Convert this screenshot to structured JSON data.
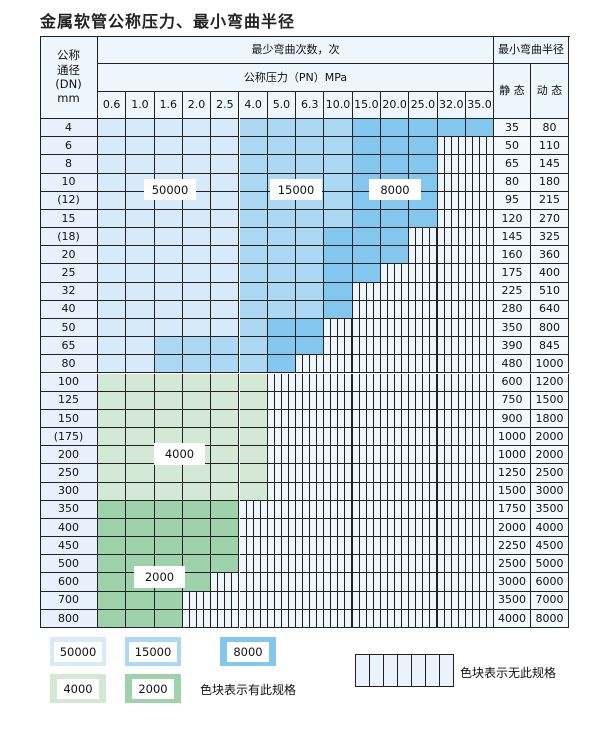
{
  "title": "金属软管公称压力、最小弯曲半径",
  "header": {
    "dn_label": "公称\n通径\n(DN)\nmm",
    "cycles_label": "最少弯曲次数，次",
    "pressure_label": "公称压力（PN）MPa",
    "radius_label": "最小弯曲半径",
    "static_label": "静 态",
    "dynamic_label": "动 态",
    "pressures": [
      "0.6",
      "1.0",
      "1.6",
      "2.0",
      "2.5",
      "4.0",
      "5.0",
      "6.3",
      "10.0",
      "15.0",
      "20.0",
      "25.0",
      "32.0",
      "35.0"
    ]
  },
  "rows": [
    {
      "dn": "4",
      "static": "35",
      "dynamic": "80",
      "cells": "aaaaabbbbccccc"
    },
    {
      "dn": "6",
      "static": "50",
      "dynamic": "110",
      "cells": "aaaaabbbbccchh"
    },
    {
      "dn": "8",
      "static": "65",
      "dynamic": "145",
      "cells": "aaaaabbbbccchh"
    },
    {
      "dn": "10",
      "static": "80",
      "dynamic": "180",
      "cells": "aaaaabbbbccchh"
    },
    {
      "dn": "(12)",
      "static": "95",
      "dynamic": "215",
      "cells": "aaaaabbbbccchh"
    },
    {
      "dn": "15",
      "static": "120",
      "dynamic": "270",
      "cells": "aaaaabbbbccchh"
    },
    {
      "dn": "(18)",
      "static": "145",
      "dynamic": "325",
      "cells": "aaaaabbbccchhh"
    },
    {
      "dn": "20",
      "static": "160",
      "dynamic": "360",
      "cells": "aaaaabbbccchhh"
    },
    {
      "dn": "25",
      "static": "175",
      "dynamic": "400",
      "cells": "aaaaabbbcchhhh"
    },
    {
      "dn": "32",
      "static": "225",
      "dynamic": "510",
      "cells": "aaaaabbbchhhhh"
    },
    {
      "dn": "40",
      "static": "280",
      "dynamic": "640",
      "cells": "aaaaabbbchhhhh"
    },
    {
      "dn": "50",
      "static": "350",
      "dynamic": "800",
      "cells": "aaaaabcchhhhhh"
    },
    {
      "dn": "65",
      "static": "390",
      "dynamic": "845",
      "cells": "aabbbbcchhhhhh"
    },
    {
      "dn": "80",
      "static": "480",
      "dynamic": "1000",
      "cells": "aabbbbchhhhhhh"
    },
    {
      "dn": "100",
      "static": "600",
      "dynamic": "1200",
      "cells": "ddddddhhhhhhhh"
    },
    {
      "dn": "125",
      "static": "750",
      "dynamic": "1500",
      "cells": "ddddddhhhhhhhh"
    },
    {
      "dn": "150",
      "static": "900",
      "dynamic": "1800",
      "cells": "ddddddhhhhhhhh"
    },
    {
      "dn": "(175)",
      "static": "1000",
      "dynamic": "2000",
      "cells": "ddddddhhhhhhhh"
    },
    {
      "dn": "200",
      "static": "1000",
      "dynamic": "2000",
      "cells": "ddddddhhhhhhhh"
    },
    {
      "dn": "250",
      "static": "1250",
      "dynamic": "2500",
      "cells": "ddddddhhhhhhhh"
    },
    {
      "dn": "300",
      "static": "1500",
      "dynamic": "3000",
      "cells": "ddddddhhhhhhhh"
    },
    {
      "dn": "350",
      "static": "1750",
      "dynamic": "3500",
      "cells": "eeeeehhhhhhhhh"
    },
    {
      "dn": "400",
      "static": "2000",
      "dynamic": "4000",
      "cells": "eeeeehhhhhhhhh"
    },
    {
      "dn": "450",
      "static": "2250",
      "dynamic": "4500",
      "cells": "eeeeehhhhhhhhh"
    },
    {
      "dn": "500",
      "static": "2500",
      "dynamic": "5000",
      "cells": "eeeeehhhhhhhhh"
    },
    {
      "dn": "600",
      "static": "3000",
      "dynamic": "6000",
      "cells": "eeeehhhhhhhhhh"
    },
    {
      "dn": "700",
      "static": "3500",
      "dynamic": "7000",
      "cells": "eeehhhhhhhhhhh"
    },
    {
      "dn": "800",
      "static": "4000",
      "dynamic": "8000",
      "cells": "eeehhhhhhhhhhh"
    }
  ],
  "region_labels": {
    "a": "50000",
    "b": "15000",
    "cc": "8000",
    "d": "4000",
    "e": "2000"
  },
  "colors": {
    "a": "#d6eaf9",
    "b": "#acd8f4",
    "cc": "#84c7ee",
    "d": "#d3e9d6",
    "e": "#9ed2aa",
    "hatched": "#eef5fb"
  },
  "legend": {
    "items": [
      "50000",
      "15000",
      "8000",
      "4000",
      "2000"
    ],
    "available_text": "色块表示有此规格",
    "unavailable_text": "色块表示无此规格"
  }
}
